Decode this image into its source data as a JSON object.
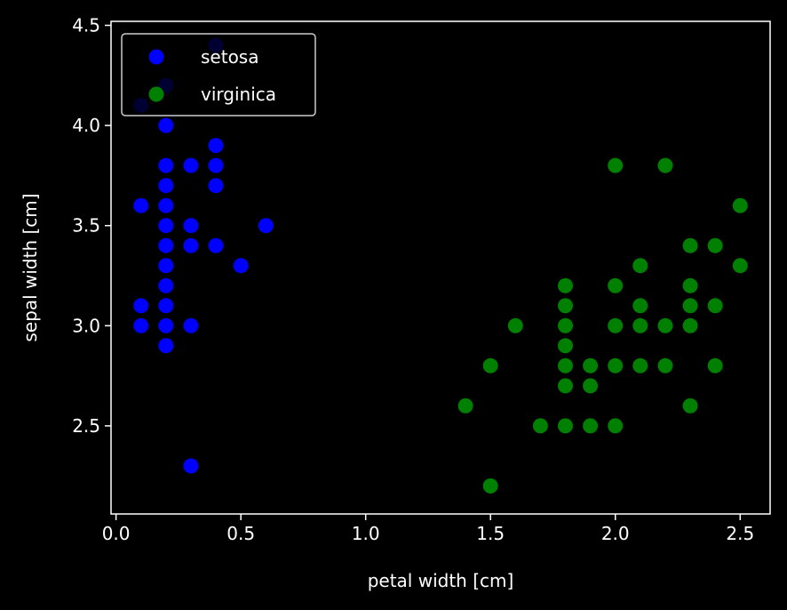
{
  "chart_data": {
    "type": "scatter",
    "title": "",
    "xlabel": "petal width [cm]",
    "ylabel": "sepal width [cm]",
    "xlim": [
      -0.02,
      2.62
    ],
    "ylim": [
      2.06,
      4.52
    ],
    "xticks": [
      0.0,
      0.5,
      1.0,
      1.5,
      2.0,
      2.5
    ],
    "xtick_labels": [
      "0.0",
      "0.5",
      "1.0",
      "1.5",
      "2.0",
      "2.5"
    ],
    "yticks": [
      2.5,
      3.0,
      3.5,
      4.0,
      4.5
    ],
    "ytick_labels": [
      "2.5",
      "3.0",
      "3.5",
      "4.0",
      "4.5"
    ],
    "grid": false,
    "legend_position": "top-left",
    "series": [
      {
        "name": "setosa",
        "color": "#0000ff",
        "points": [
          [
            0.1,
            4.1
          ],
          [
            0.2,
            4.2
          ],
          [
            0.4,
            4.4
          ],
          [
            0.2,
            4.0
          ],
          [
            0.4,
            3.9
          ],
          [
            0.2,
            3.8
          ],
          [
            0.3,
            3.8
          ],
          [
            0.4,
            3.8
          ],
          [
            0.2,
            3.7
          ],
          [
            0.4,
            3.7
          ],
          [
            0.1,
            3.6
          ],
          [
            0.2,
            3.6
          ],
          [
            0.2,
            3.5
          ],
          [
            0.3,
            3.5
          ],
          [
            0.6,
            3.5
          ],
          [
            0.2,
            3.4
          ],
          [
            0.3,
            3.4
          ],
          [
            0.4,
            3.4
          ],
          [
            0.2,
            3.3
          ],
          [
            0.5,
            3.3
          ],
          [
            0.2,
            3.2
          ],
          [
            0.1,
            3.1
          ],
          [
            0.2,
            3.1
          ],
          [
            0.1,
            3.0
          ],
          [
            0.2,
            3.0
          ],
          [
            0.3,
            3.0
          ],
          [
            0.2,
            2.9
          ],
          [
            0.3,
            2.3
          ]
        ]
      },
      {
        "name": "virginica",
        "color": "#008000",
        "points": [
          [
            2.0,
            3.8
          ],
          [
            2.2,
            3.8
          ],
          [
            2.5,
            3.6
          ],
          [
            2.3,
            3.4
          ],
          [
            2.4,
            3.4
          ],
          [
            2.1,
            3.3
          ],
          [
            2.5,
            3.3
          ],
          [
            1.8,
            3.2
          ],
          [
            2.0,
            3.2
          ],
          [
            2.3,
            3.2
          ],
          [
            1.8,
            3.1
          ],
          [
            2.1,
            3.1
          ],
          [
            2.3,
            3.1
          ],
          [
            2.4,
            3.1
          ],
          [
            1.6,
            3.0
          ],
          [
            1.8,
            3.0
          ],
          [
            2.0,
            3.0
          ],
          [
            2.1,
            3.0
          ],
          [
            2.2,
            3.0
          ],
          [
            2.3,
            3.0
          ],
          [
            1.8,
            2.9
          ],
          [
            1.5,
            2.8
          ],
          [
            1.8,
            2.8
          ],
          [
            1.9,
            2.8
          ],
          [
            2.0,
            2.8
          ],
          [
            2.1,
            2.8
          ],
          [
            2.2,
            2.8
          ],
          [
            2.4,
            2.8
          ],
          [
            1.8,
            2.7
          ],
          [
            1.9,
            2.7
          ],
          [
            1.4,
            2.6
          ],
          [
            2.3,
            2.6
          ],
          [
            1.7,
            2.5
          ],
          [
            1.8,
            2.5
          ],
          [
            1.9,
            2.5
          ],
          [
            2.0,
            2.5
          ],
          [
            1.5,
            2.2
          ]
        ]
      }
    ]
  }
}
